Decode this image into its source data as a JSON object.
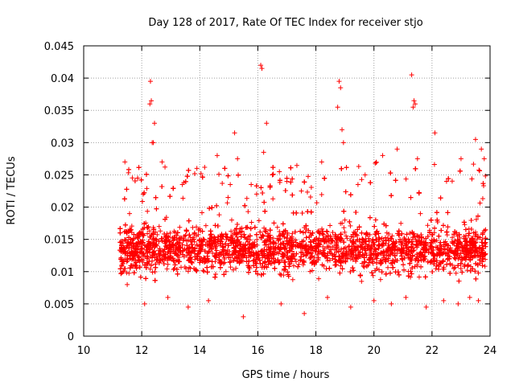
{
  "chart_data": {
    "type": "scatter",
    "title": "Day 128 of 2017, Rate Of TEC Index for receiver stjo",
    "xlabel": "GPS time / hours",
    "ylabel": "ROTI / TECUs",
    "xlim": [
      10,
      24
    ],
    "ylim": [
      0,
      0.045
    ],
    "x_ticks": [
      "10",
      "12",
      "14",
      "16",
      "18",
      "20",
      "22",
      "24"
    ],
    "y_ticks": [
      "0",
      "0.005",
      "0.01",
      "0.015",
      "0.02",
      "0.025",
      "0.03",
      "0.035",
      "0.04",
      "0.045"
    ],
    "grid": true,
    "marker": "+",
    "colors": {
      "series": "#ff0000",
      "grid": "#a0a0a0",
      "axis": "#000000"
    },
    "series": [
      {
        "name": "ROTI",
        "x": [
          11.3,
          11.42,
          11.58,
          12.05,
          12.28,
          12.3,
          12.33,
          12.36,
          12.4,
          12.44,
          12.7,
          13.4,
          13.9,
          14.6,
          15.05,
          15.2,
          15.3,
          16.1,
          16.14,
          16.2,
          16.3,
          16.5,
          17.0,
          17.5,
          18.2,
          18.75,
          18.8,
          18.85,
          18.9,
          18.95,
          19.45,
          20.3,
          20.8,
          21.3,
          21.35,
          21.38,
          21.42,
          21.5,
          22.1,
          22.5,
          23.0,
          23.5,
          23.7,
          23.8,
          11.5,
          12.1,
          12.9,
          13.6,
          14.3,
          15.5,
          16.8,
          17.6,
          18.4,
          19.2,
          20.0,
          20.6,
          21.1,
          21.8,
          22.4,
          22.9,
          23.3,
          23.6,
          13.0,
          13.8,
          15.1,
          16.6,
          17.8,
          19.8,
          21.6,
          23.2,
          11.35,
          12.6,
          14.9,
          17.2,
          19.0,
          20.9,
          22.7,
          23.75
        ],
        "y": [
          0.014,
          0.027,
          0.019,
          0.022,
          0.036,
          0.0395,
          0.0365,
          0.03,
          0.03,
          0.033,
          0.027,
          0.0235,
          0.026,
          0.028,
          0.0235,
          0.0315,
          0.0275,
          0.042,
          0.0415,
          0.0285,
          0.033,
          0.025,
          0.024,
          0.0225,
          0.027,
          0.0355,
          0.0395,
          0.0385,
          0.032,
          0.03,
          0.0235,
          0.028,
          0.029,
          0.0405,
          0.0355,
          0.0365,
          0.036,
          0.0275,
          0.0315,
          0.024,
          0.0275,
          0.0305,
          0.029,
          0.0275,
          0.008,
          0.005,
          0.006,
          0.0045,
          0.0055,
          0.003,
          0.005,
          0.0035,
          0.006,
          0.0045,
          0.0055,
          0.005,
          0.006,
          0.0045,
          0.0055,
          0.005,
          0.006,
          0.0055,
          0.012,
          0.015,
          0.018,
          0.013,
          0.016,
          0.011,
          0.019,
          0.014,
          0.013,
          0.017,
          0.01,
          0.012,
          0.018,
          0.015,
          0.011,
          0.016
        ]
      }
    ]
  }
}
